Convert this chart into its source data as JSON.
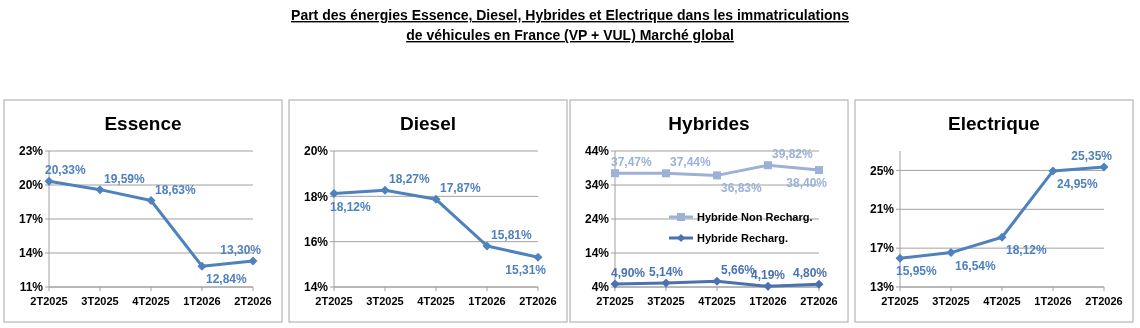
{
  "chart_data": [
    {
      "type": "other",
      "title": "Part des énergies Essence, Diesel, Hybrides et Electrique dans les immatriculations de véhicules en France (VP + VUL) Marché global"
    },
    {
      "type": "line",
      "title": "Essence",
      "categories": [
        "2T2025",
        "3T2025",
        "4T2025",
        "1T2026",
        "2T2026"
      ],
      "series": [
        {
          "color": "#4f81bd",
          "values": [
            20.33,
            19.59,
            18.63,
            12.84,
            13.3
          ],
          "value_labels": [
            "20,33%",
            "19,59%",
            "18,63%",
            "12,84%",
            "13,30%"
          ]
        }
      ],
      "ylim": [
        11,
        23
      ],
      "yticks": [
        {
          "value": 11,
          "label": "11%"
        },
        {
          "value": 14,
          "label": "14%"
        },
        {
          "value": 17,
          "label": "17%"
        },
        {
          "value": 20,
          "label": "20%"
        },
        {
          "value": 23,
          "label": "23%"
        }
      ],
      "grid": "y",
      "marker": "diamond",
      "legend": false
    },
    {
      "type": "line",
      "title": "Diesel",
      "categories": [
        "2T2025",
        "3T2025",
        "4T2025",
        "1T2026",
        "2T2026"
      ],
      "series": [
        {
          "color": "#4f81bd",
          "values": [
            18.12,
            18.27,
            17.87,
            15.81,
            15.31
          ],
          "value_labels": [
            "18,12%",
            "18,27%",
            "17,87%",
            "15,81%",
            "15,31%"
          ]
        }
      ],
      "ylim": [
        14,
        20
      ],
      "yticks": [
        {
          "value": 14,
          "label": "14%"
        },
        {
          "value": 16,
          "label": "16%"
        },
        {
          "value": 18,
          "label": "18%"
        },
        {
          "value": 20,
          "label": "20%"
        }
      ],
      "grid": "y",
      "marker": "diamond",
      "legend": false
    },
    {
      "type": "line",
      "title": "Hybrides",
      "categories": [
        "2T2025",
        "3T2025",
        "4T2025",
        "1T2026",
        "2T2026"
      ],
      "series": [
        {
          "name": "Hybride Non Recharg.",
          "color": "#9cb1d8",
          "marker": "square",
          "values": [
            37.47,
            37.44,
            36.83,
            39.82,
            38.4
          ],
          "value_labels": [
            "37,47%",
            "37,44%",
            "36,83%",
            "39,82%",
            "38,40%"
          ]
        },
        {
          "name": "Hybride Recharg.",
          "color": "#4a72b0",
          "marker": "diamond",
          "values": [
            4.9,
            5.14,
            5.66,
            4.19,
            4.8
          ],
          "value_labels": [
            "4,90%",
            "5,14%",
            "5,66%",
            "4,19%",
            "4,80%"
          ]
        }
      ],
      "ylim": [
        4,
        44
      ],
      "yticks": [
        {
          "value": 4,
          "label": "4%"
        },
        {
          "value": 14,
          "label": "14%"
        },
        {
          "value": 24,
          "label": "24%"
        },
        {
          "value": 34,
          "label": "34%"
        },
        {
          "value": 44,
          "label": "44%"
        }
      ],
      "grid": "y",
      "legend": "right"
    },
    {
      "type": "line",
      "title": "Electrique",
      "categories": [
        "2T2025",
        "3T2025",
        "4T2025",
        "1T2026",
        "2T2026"
      ],
      "series": [
        {
          "color": "#4f81bd",
          "values": [
            15.95,
            16.54,
            18.12,
            24.95,
            25.35
          ],
          "value_labels": [
            "15,95%",
            "16,54%",
            "18,12%",
            "24,95%",
            "25,35%"
          ]
        }
      ],
      "ylim": [
        13,
        27
      ],
      "yticks": [
        {
          "value": 13,
          "label": "13%"
        },
        {
          "value": 17,
          "label": "17%"
        },
        {
          "value": 21,
          "label": "21%"
        },
        {
          "value": 25,
          "label": "25%"
        }
      ],
      "grid": "y",
      "marker": "diamond",
      "legend": false
    }
  ]
}
